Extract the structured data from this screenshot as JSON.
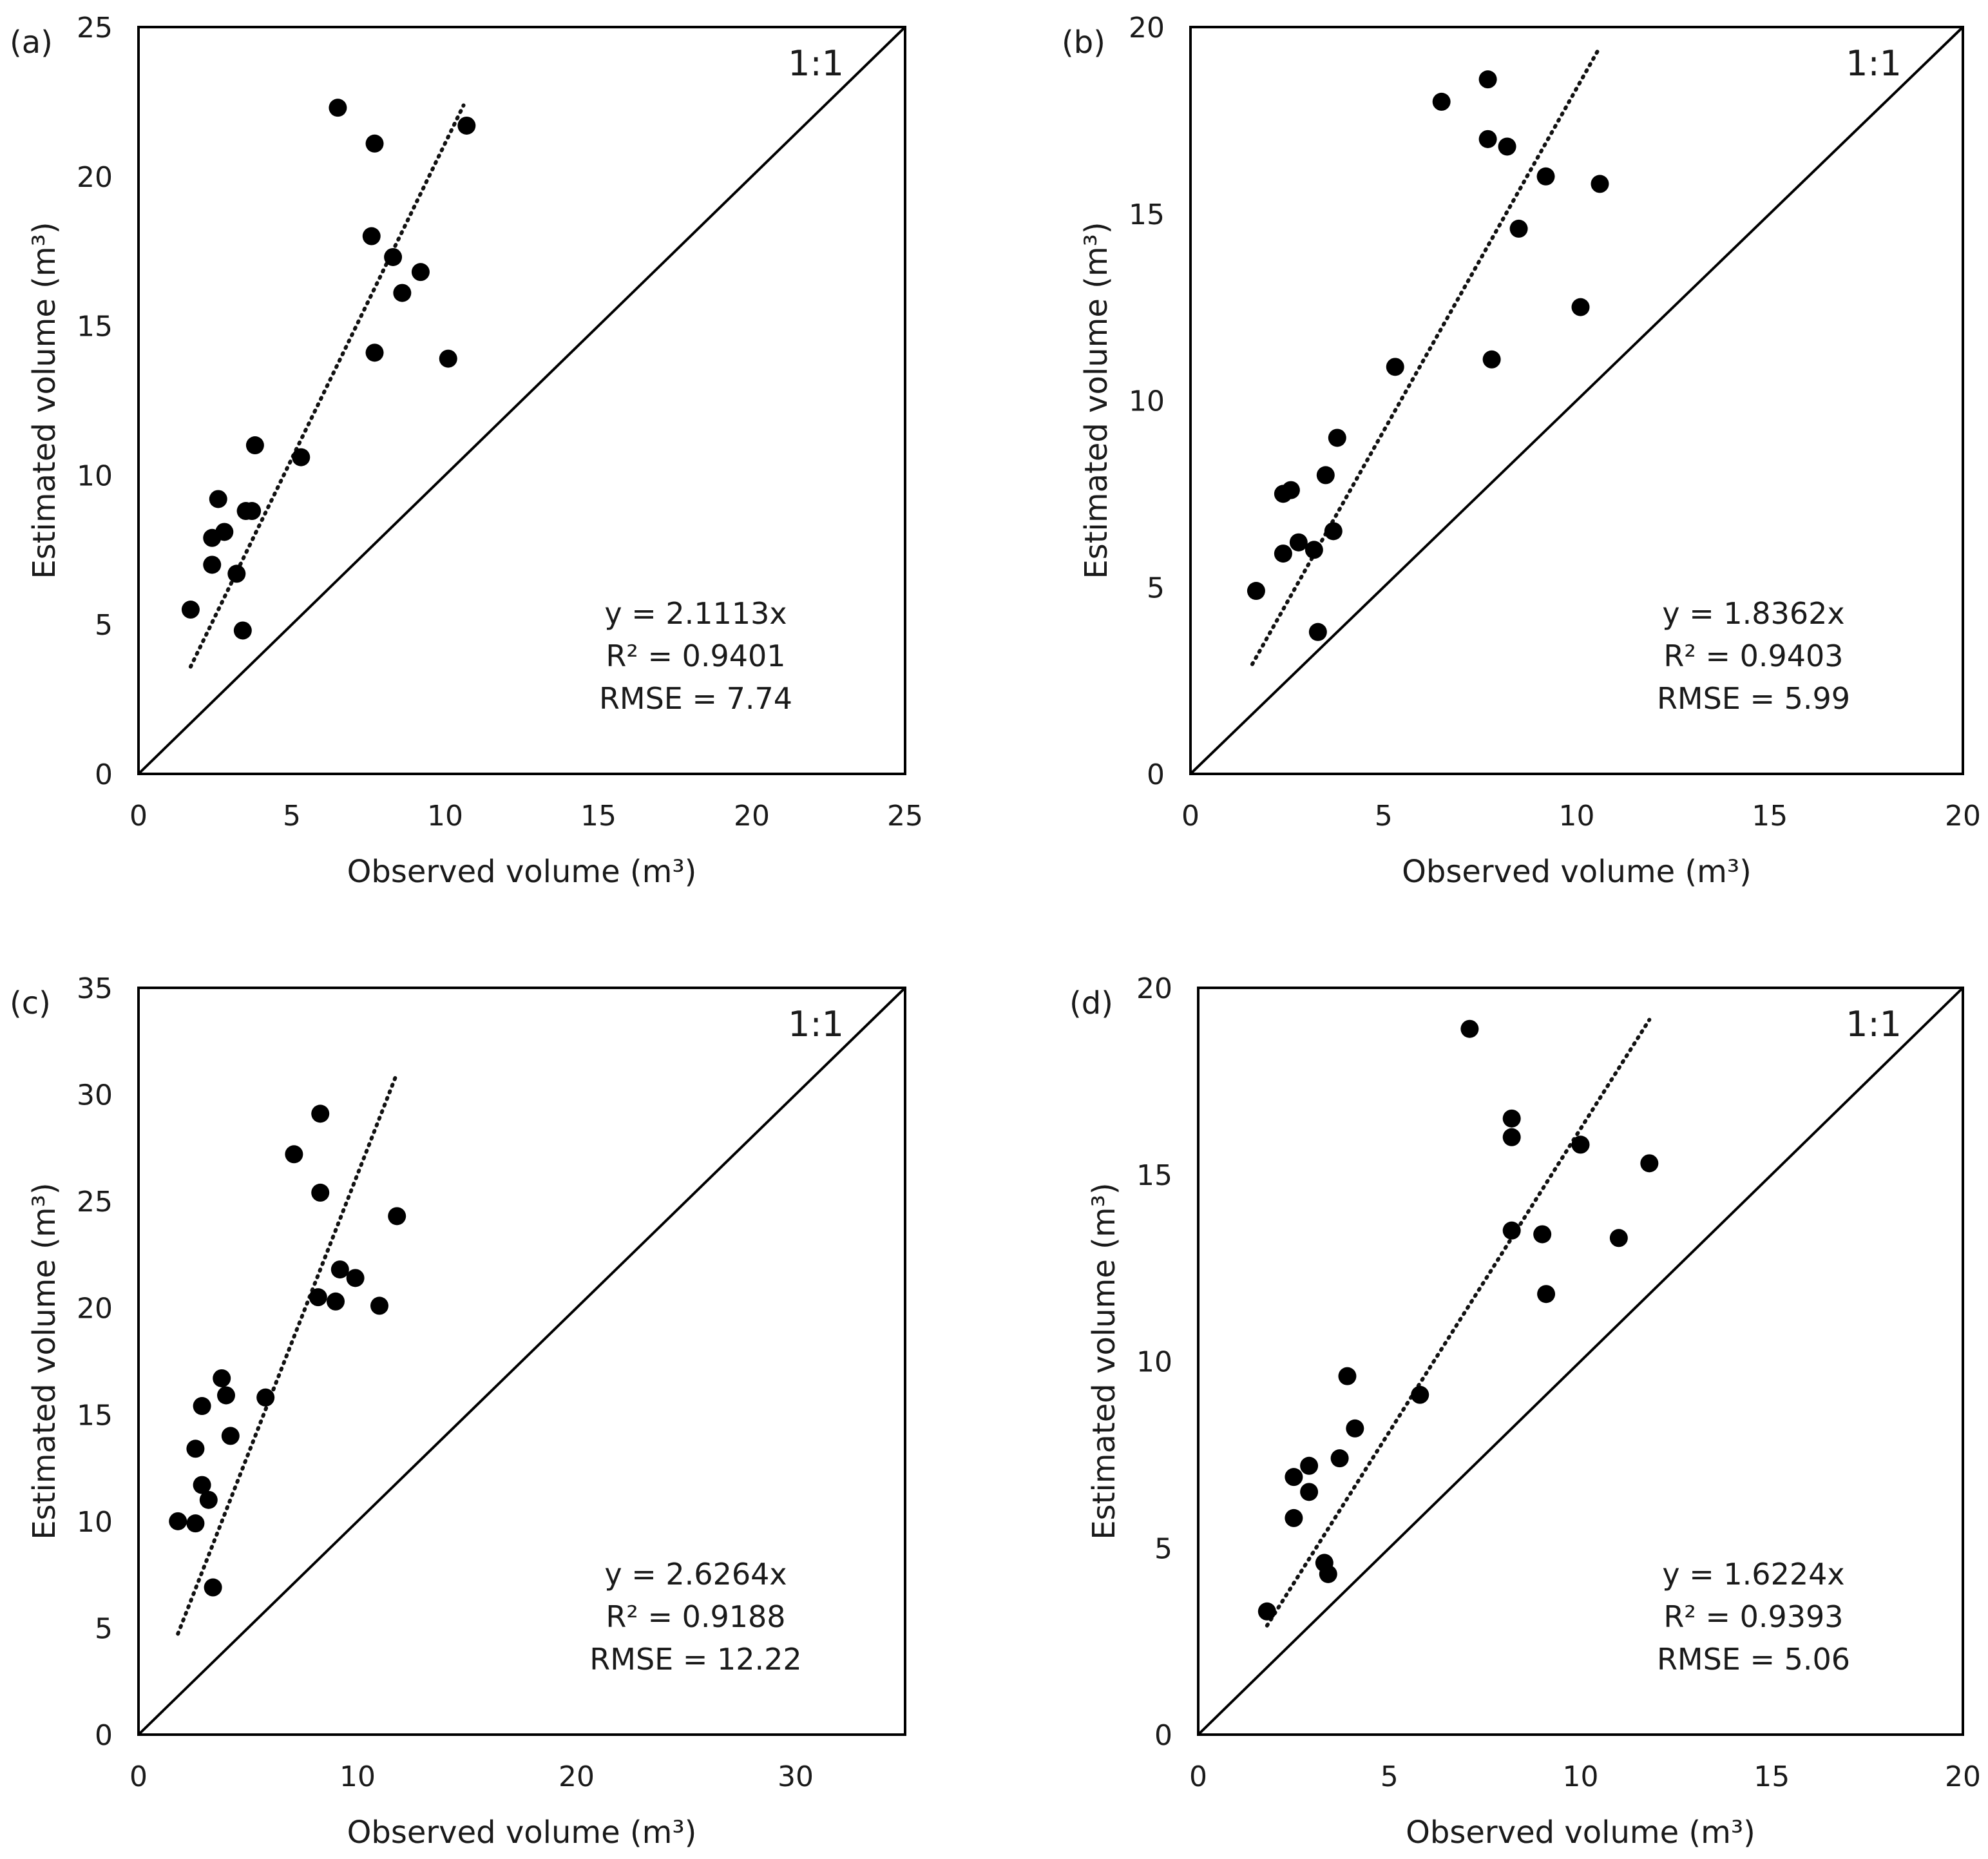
{
  "chart_data": [
    {
      "type": "scatter",
      "panel_label": "(a)",
      "xlabel": "Observed volume (m³)",
      "ylabel": "Estimated volume (m³)",
      "xlim": [
        0,
        25
      ],
      "ylim": [
        0,
        25
      ],
      "xticks": [
        "0",
        "5",
        "10",
        "15",
        "20",
        "25"
      ],
      "yticks": [
        "0",
        "5",
        "10",
        "15",
        "20",
        "25"
      ],
      "identity_label": "1:1",
      "trendline": {
        "slope": 2.1113,
        "x_range": [
          1.7,
          10.6
        ]
      },
      "stats": [
        "y = 2.1113x",
        "R² = 0.9401",
        "RMSE = 7.74"
      ],
      "points": [
        [
          6.5,
          22.3
        ],
        [
          10.7,
          21.7
        ],
        [
          7.7,
          21.1
        ],
        [
          7.6,
          18.0
        ],
        [
          8.3,
          17.3
        ],
        [
          9.2,
          16.8
        ],
        [
          8.6,
          16.1
        ],
        [
          7.7,
          14.1
        ],
        [
          10.1,
          13.9
        ],
        [
          3.8,
          11.0
        ],
        [
          5.3,
          10.6
        ],
        [
          2.6,
          9.2
        ],
        [
          3.5,
          8.8
        ],
        [
          3.7,
          8.8
        ],
        [
          2.8,
          8.1
        ],
        [
          2.4,
          7.9
        ],
        [
          2.4,
          7.0
        ],
        [
          3.2,
          6.7
        ],
        [
          1.7,
          5.5
        ],
        [
          3.4,
          4.8
        ]
      ],
      "grid": false,
      "legend": "none"
    },
    {
      "type": "scatter",
      "panel_label": "(b)",
      "xlabel": "Observed volume (m³)",
      "ylabel": "Estimated volume (m³)",
      "xlim": [
        0,
        20
      ],
      "ylim": [
        0,
        20
      ],
      "xticks": [
        "0",
        "5",
        "10",
        "15",
        "20"
      ],
      "yticks": [
        "0",
        "5",
        "10",
        "15",
        "20"
      ],
      "identity_label": "1:1",
      "trendline": {
        "slope": 1.8362,
        "x_range": [
          1.6,
          10.6
        ]
      },
      "stats": [
        "y = 1.8362x",
        "R² = 0.9403",
        "RMSE = 5.99"
      ],
      "points": [
        [
          7.7,
          18.6
        ],
        [
          6.5,
          18.0
        ],
        [
          7.7,
          17.0
        ],
        [
          8.2,
          16.8
        ],
        [
          9.2,
          16.0
        ],
        [
          10.6,
          15.8
        ],
        [
          8.5,
          14.6
        ],
        [
          10.1,
          12.5
        ],
        [
          7.8,
          11.1
        ],
        [
          5.3,
          10.9
        ],
        [
          3.8,
          9.0
        ],
        [
          3.5,
          8.0
        ],
        [
          2.6,
          7.6
        ],
        [
          2.4,
          7.5
        ],
        [
          3.7,
          6.5
        ],
        [
          2.8,
          6.2
        ],
        [
          3.2,
          6.0
        ],
        [
          2.4,
          5.9
        ],
        [
          1.7,
          4.9
        ],
        [
          3.3,
          3.8
        ]
      ],
      "grid": false,
      "legend": "none"
    },
    {
      "type": "scatter",
      "panel_label": "(c)",
      "xlabel": "Observed volume (m³)",
      "ylabel": "Estimated volume (m³)",
      "xlim": [
        0,
        35
      ],
      "ylim": [
        0,
        35
      ],
      "xticks": [
        "0",
        "10",
        "20",
        "30"
      ],
      "yticks": [
        "0",
        "5",
        "10",
        "15",
        "20",
        "25",
        "30",
        "35"
      ],
      "identity_label": "1:1",
      "trendline": {
        "slope": 2.6264,
        "x_range": [
          1.8,
          11.8
        ]
      },
      "stats": [
        "y = 2.6264x",
        "R² = 0.9188",
        "RMSE = 12.22"
      ],
      "points": [
        [
          8.3,
          29.1
        ],
        [
          7.1,
          27.2
        ],
        [
          8.3,
          25.4
        ],
        [
          11.8,
          24.3
        ],
        [
          9.2,
          21.8
        ],
        [
          9.9,
          21.4
        ],
        [
          8.2,
          20.5
        ],
        [
          9.0,
          20.3
        ],
        [
          11.0,
          20.1
        ],
        [
          3.8,
          16.7
        ],
        [
          5.8,
          15.8
        ],
        [
          4.0,
          15.9
        ],
        [
          2.9,
          15.4
        ],
        [
          4.2,
          14.0
        ],
        [
          2.6,
          13.4
        ],
        [
          2.9,
          11.7
        ],
        [
          3.2,
          11.0
        ],
        [
          1.8,
          10.0
        ],
        [
          2.6,
          9.9
        ],
        [
          3.4,
          6.9
        ]
      ],
      "grid": false,
      "legend": "none"
    },
    {
      "type": "scatter",
      "panel_label": "(d)",
      "xlabel": "Observed volume (m³)",
      "ylabel": "Estimated volume (m³)",
      "xlim": [
        0,
        20
      ],
      "ylim": [
        0,
        20
      ],
      "xticks": [
        "0",
        "5",
        "10",
        "15",
        "20"
      ],
      "yticks": [
        "0",
        "5",
        "10",
        "15",
        "20"
      ],
      "identity_label": "1:1",
      "trendline": {
        "slope": 1.6224,
        "x_range": [
          1.8,
          11.8
        ]
      },
      "stats": [
        "y = 1.6224x",
        "R² = 0.9393",
        "RMSE = 5.06"
      ],
      "points": [
        [
          7.1,
          18.9
        ],
        [
          8.2,
          16.5
        ],
        [
          8.2,
          16.0
        ],
        [
          10.0,
          15.8
        ],
        [
          11.8,
          15.3
        ],
        [
          8.2,
          13.5
        ],
        [
          9.0,
          13.4
        ],
        [
          11.0,
          13.3
        ],
        [
          9.1,
          11.8
        ],
        [
          3.9,
          9.6
        ],
        [
          5.8,
          9.1
        ],
        [
          4.1,
          8.2
        ],
        [
          3.7,
          7.4
        ],
        [
          2.9,
          7.2
        ],
        [
          2.5,
          6.9
        ],
        [
          2.9,
          6.5
        ],
        [
          2.5,
          5.8
        ],
        [
          3.3,
          4.6
        ],
        [
          3.4,
          4.3
        ],
        [
          1.8,
          3.3
        ]
      ],
      "grid": false,
      "legend": "none"
    }
  ]
}
